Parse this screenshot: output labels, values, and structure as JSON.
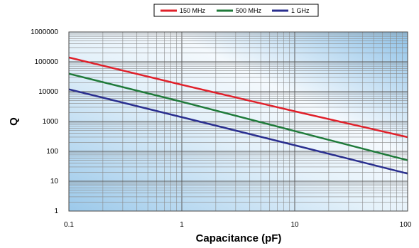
{
  "chart_data": {
    "type": "line",
    "title": "",
    "xlabel": "Capacitance (pF)",
    "ylabel": "Q",
    "xscale": "log",
    "yscale": "log",
    "xlim": [
      0.1,
      100
    ],
    "ylim": [
      1,
      1000000
    ],
    "x_tick_labels": [
      "0.1",
      "1",
      "10",
      "100"
    ],
    "y_tick_labels": [
      "1",
      "10",
      "100",
      "1000",
      "10000",
      "100000",
      "1000000"
    ],
    "grid": true,
    "legend_position": "top",
    "series": [
      {
        "name": "150 MHz",
        "color": "#e0202a",
        "x": [
          0.1,
          1,
          10,
          100
        ],
        "y": [
          140000,
          17000,
          2200,
          300
        ]
      },
      {
        "name": "500 MHz",
        "color": "#1f7a3a",
        "x": [
          0.1,
          1,
          10,
          100
        ],
        "y": [
          40000,
          4600,
          480,
          50
        ]
      },
      {
        "name": "1 GHz",
        "color": "#2a2f8f",
        "x": [
          0.1,
          1,
          10,
          100
        ],
        "y": [
          12000,
          1400,
          160,
          18
        ]
      }
    ]
  }
}
